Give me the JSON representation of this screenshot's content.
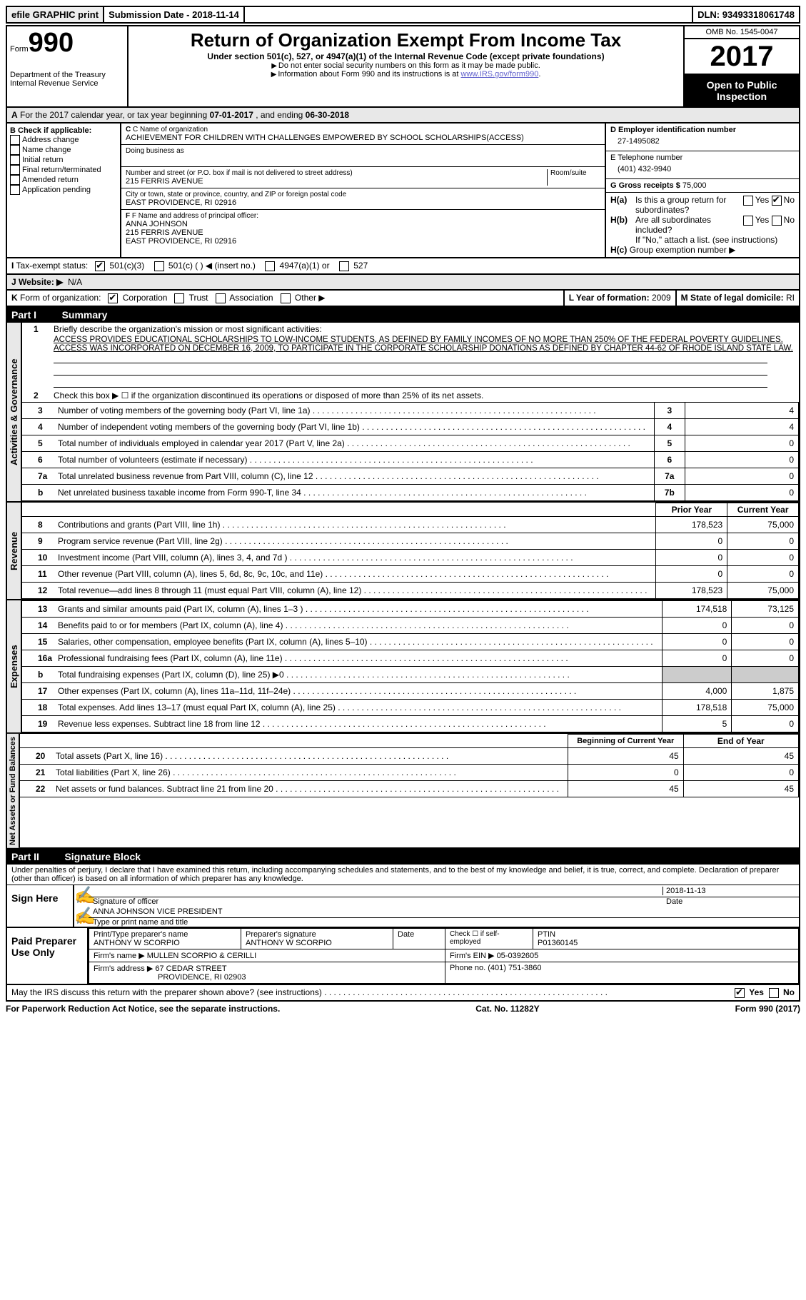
{
  "topbar": {
    "efile": "efile GRAPHIC print",
    "submission_label": "Submission Date - ",
    "submission_date": "2018-11-14",
    "dln_label": "DLN: ",
    "dln": "93493318061748"
  },
  "header": {
    "form_label": "Form",
    "form_num": "990",
    "dept1": "Department of the Treasury",
    "dept2": "Internal Revenue Service",
    "title": "Return of Organization Exempt From Income Tax",
    "subtitle": "Under section 501(c), 527, or 4947(a)(1) of the Internal Revenue Code (except private foundations)",
    "note1": "Do not enter social security numbers on this form as it may be made public.",
    "note2_pre": "Information about Form 990 and its instructions is at ",
    "note2_link": "www.IRS.gov/form990",
    "omb": "OMB No. 1545-0047",
    "year": "2017",
    "open": "Open to Public Inspection"
  },
  "section_a": {
    "prefix": "A",
    "text": "For the 2017 calendar year, or tax year beginning ",
    "begin": "07-01-2017",
    "mid": " , and ending ",
    "end": "06-30-2018"
  },
  "col_b": {
    "header": "B Check if applicable:",
    "items": [
      "Address change",
      "Name change",
      "Initial return",
      "Final return/terminated",
      "Amended return",
      "Application pending"
    ]
  },
  "col_c": {
    "name_label": "C Name of organization",
    "name": "ACHIEVEMENT FOR CHILDREN WITH CHALLENGES EMPOWERED BY SCHOOL SCHOLARSHIPS(ACCESS)",
    "dba_label": "Doing business as",
    "addr_label": "Number and street (or P.O. box if mail is not delivered to street address)",
    "addr": "215 FERRIS AVENUE",
    "room_label": "Room/suite",
    "city_label": "City or town, state or province, country, and ZIP or foreign postal code",
    "city": "EAST PROVIDENCE, RI  02916",
    "f_label": "F Name and address of principal officer:",
    "f_name": "ANNA JOHNSON",
    "f_addr1": "215 FERRIS AVENUE",
    "f_addr2": "EAST PROVIDENCE, RI  02916"
  },
  "col_d": {
    "d_label": "D Employer identification number",
    "d_val": "27-1495082",
    "e_label": "E Telephone number",
    "e_val": "(401) 432-9940",
    "g_label": "G Gross receipts $ ",
    "g_val": "75,000",
    "ha_label": "H(a)",
    "ha_text": "Is this a group return for subordinates?",
    "hb_label": "H(b)",
    "hb_text": "Are all subordinates included?",
    "h_note": "If \"No,\" attach a list. (see instructions)",
    "hc_label": "H(c)",
    "hc_text": "Group exemption number ▶",
    "yes": "Yes",
    "no": "No"
  },
  "row_i": {
    "label": "I",
    "text": "Tax-exempt status:",
    "opts": [
      "501(c)(3)",
      "501(c) (    ) ◀ (insert no.)",
      "4947(a)(1) or",
      "527"
    ]
  },
  "row_j": {
    "label": "J",
    "text": "Website: ▶",
    "val": "N/A"
  },
  "row_k": {
    "label": "K",
    "text": "Form of organization:",
    "opts": [
      "Corporation",
      "Trust",
      "Association",
      "Other ▶"
    ],
    "l_label": "L Year of formation: ",
    "l_val": "2009",
    "m_label": "M State of legal domicile: ",
    "m_val": "RI"
  },
  "part1": {
    "label": "Part I",
    "title": "Summary"
  },
  "governance": {
    "vert": "Activities & Governance",
    "l1_num": "1",
    "l1": "Briefly describe the organization's mission or most significant activities:",
    "mission": "ACCESS PROVIDES EDUCATIONAL SCHOLARSHIPS TO LOW-INCOME STUDENTS, AS DEFINED BY FAMILY INCOMES OF NO MORE THAN 250% OF THE FEDERAL POVERTY GUIDELINES. ACCESS WAS INCORPORATED ON DECEMBER 16, 2009, TO PARTICIPATE IN THE CORPORATE SCHOLARSHIP DONATIONS AS DEFINED BY CHAPTER 44-62 OF RHODE ISLAND STATE LAW.",
    "l2_num": "2",
    "l2": "Check this box ▶ ☐ if the organization discontinued its operations or disposed of more than 25% of its net assets.",
    "rows": [
      {
        "n": "3",
        "t": "Number of voting members of the governing body (Part VI, line 1a)",
        "box": "3",
        "v": "4"
      },
      {
        "n": "4",
        "t": "Number of independent voting members of the governing body (Part VI, line 1b)",
        "box": "4",
        "v": "4"
      },
      {
        "n": "5",
        "t": "Total number of individuals employed in calendar year 2017 (Part V, line 2a)",
        "box": "5",
        "v": "0"
      },
      {
        "n": "6",
        "t": "Total number of volunteers (estimate if necessary)",
        "box": "6",
        "v": "0"
      },
      {
        "n": "7a",
        "t": "Total unrelated business revenue from Part VIII, column (C), line 12",
        "box": "7a",
        "v": "0"
      },
      {
        "n": "b",
        "t": "Net unrelated business taxable income from Form 990-T, line 34",
        "box": "7b",
        "v": "0"
      }
    ]
  },
  "revenue": {
    "vert": "Revenue",
    "prior": "Prior Year",
    "current": "Current Year",
    "rows": [
      {
        "n": "8",
        "t": "Contributions and grants (Part VIII, line 1h)",
        "p": "178,523",
        "c": "75,000"
      },
      {
        "n": "9",
        "t": "Program service revenue (Part VIII, line 2g)",
        "p": "0",
        "c": "0"
      },
      {
        "n": "10",
        "t": "Investment income (Part VIII, column (A), lines 3, 4, and 7d )",
        "p": "0",
        "c": "0"
      },
      {
        "n": "11",
        "t": "Other revenue (Part VIII, column (A), lines 5, 6d, 8c, 9c, 10c, and 11e)",
        "p": "0",
        "c": "0"
      },
      {
        "n": "12",
        "t": "Total revenue—add lines 8 through 11 (must equal Part VIII, column (A), line 12)",
        "p": "178,523",
        "c": "75,000"
      }
    ]
  },
  "expenses": {
    "vert": "Expenses",
    "rows": [
      {
        "n": "13",
        "t": "Grants and similar amounts paid (Part IX, column (A), lines 1–3 )",
        "p": "174,518",
        "c": "73,125"
      },
      {
        "n": "14",
        "t": "Benefits paid to or for members (Part IX, column (A), line 4)",
        "p": "0",
        "c": "0"
      },
      {
        "n": "15",
        "t": "Salaries, other compensation, employee benefits (Part IX, column (A), lines 5–10)",
        "p": "0",
        "c": "0"
      },
      {
        "n": "16a",
        "t": "Professional fundraising fees (Part IX, column (A), line 11e)",
        "p": "0",
        "c": "0"
      },
      {
        "n": "b",
        "t": "Total fundraising expenses (Part IX, column (D), line 25) ▶0",
        "p": "__shade__",
        "c": "__shade__"
      },
      {
        "n": "17",
        "t": "Other expenses (Part IX, column (A), lines 11a–11d, 11f–24e)",
        "p": "4,000",
        "c": "1,875"
      },
      {
        "n": "18",
        "t": "Total expenses. Add lines 13–17 (must equal Part IX, column (A), line 25)",
        "p": "178,518",
        "c": "75,000"
      },
      {
        "n": "19",
        "t": "Revenue less expenses. Subtract line 18 from line 12",
        "p": "5",
        "c": "0"
      }
    ]
  },
  "netassets": {
    "vert": "Net Assets or Fund Balances",
    "begin": "Beginning of Current Year",
    "end": "End of Year",
    "rows": [
      {
        "n": "20",
        "t": "Total assets (Part X, line 16)",
        "p": "45",
        "c": "45"
      },
      {
        "n": "21",
        "t": "Total liabilities (Part X, line 26)",
        "p": "0",
        "c": "0"
      },
      {
        "n": "22",
        "t": "Net assets or fund balances. Subtract line 21 from line 20",
        "p": "45",
        "c": "45"
      }
    ]
  },
  "part2": {
    "label": "Part II",
    "title": "Signature Block",
    "perjury": "Under penalties of perjury, I declare that I have examined this return, including accompanying schedules and statements, and to the best of my knowledge and belief, it is true, correct, and complete. Declaration of preparer (other than officer) is based on all information of which preparer has any knowledge."
  },
  "sign": {
    "here": "Sign Here",
    "sig_label": "Signature of officer",
    "date_label": "Date",
    "date": "2018-11-13",
    "name": "ANNA JOHNSON VICE PRESIDENT",
    "name_label": "Type or print name and title"
  },
  "preparer": {
    "label": "Paid Preparer Use Only",
    "print_label": "Print/Type preparer's name",
    "print_name": "ANTHONY W SCORPIO",
    "sig_label": "Preparer's signature",
    "sig_name": "ANTHONY W SCORPIO",
    "date_label": "Date",
    "check_label": "Check ☐ if self-employed",
    "ptin_label": "PTIN",
    "ptin": "P01360145",
    "firm_name_label": "Firm's name    ▶ ",
    "firm_name": "MULLEN SCORPIO & CERILLI",
    "firm_ein_label": "Firm's EIN ▶ ",
    "firm_ein": "05-0392605",
    "firm_addr_label": "Firm's address ▶ ",
    "firm_addr1": "67 CEDAR STREET",
    "firm_addr2": "PROVIDENCE, RI  02903",
    "phone_label": "Phone no. ",
    "phone": "(401) 751-3860"
  },
  "discuss": {
    "text": "May the IRS discuss this return with the preparer shown above? (see instructions)",
    "yes": "Yes",
    "no": "No"
  },
  "footer": {
    "left": "For Paperwork Reduction Act Notice, see the separate instructions.",
    "mid": "Cat. No. 11282Y",
    "right": "Form 990 (2017)"
  }
}
